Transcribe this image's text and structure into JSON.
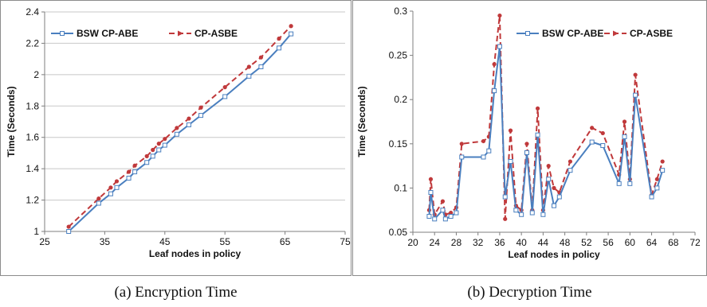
{
  "chart_data": [
    {
      "type": "line",
      "caption": "(a) Encryption Time",
      "xlabel": "Leaf nodes in policy",
      "ylabel": "Time (Seconds)",
      "xlim": [
        25,
        75
      ],
      "ylim": [
        1,
        2.4
      ],
      "x_ticks": [
        25,
        35,
        45,
        55,
        65,
        75
      ],
      "y_ticks": [
        1,
        1.2,
        1.4,
        1.6,
        1.8,
        2,
        2.2,
        2.4
      ],
      "x_tick_labels": [
        "25",
        "35",
        "45",
        "55",
        "65",
        "75"
      ],
      "y_tick_labels": [
        "1",
        "1.2",
        "1.4",
        "1.6",
        "1.8",
        "2",
        "2.2",
        "2.4"
      ],
      "grid": "horizontal",
      "legend_position": "top-left",
      "series": [
        {
          "name": "BSW CP-ABE",
          "color": "#4a7fbf",
          "marker": "square",
          "x": [
            29,
            34,
            36,
            37,
            39,
            40,
            42,
            43,
            44,
            45,
            47,
            49,
            51,
            55,
            59,
            61,
            64,
            66
          ],
          "y": [
            1.0,
            1.18,
            1.24,
            1.28,
            1.34,
            1.38,
            1.44,
            1.48,
            1.52,
            1.55,
            1.62,
            1.68,
            1.74,
            1.86,
            1.99,
            2.05,
            2.17,
            2.26
          ]
        },
        {
          "name": "CP-ASBE",
          "color": "#c0393b",
          "marker": "arrow",
          "x": [
            29,
            34,
            36,
            37,
            39,
            40,
            42,
            43,
            44,
            45,
            47,
            49,
            51,
            55,
            59,
            61,
            64,
            66
          ],
          "y": [
            1.03,
            1.21,
            1.28,
            1.32,
            1.38,
            1.42,
            1.48,
            1.52,
            1.56,
            1.59,
            1.66,
            1.72,
            1.79,
            1.92,
            2.05,
            2.11,
            2.23,
            2.31
          ]
        }
      ]
    },
    {
      "type": "line",
      "caption": "(b) Decryption Time",
      "xlabel": "Leaf nodes in policy",
      "ylabel": "Time (Seconds)",
      "xlim": [
        20,
        72
      ],
      "ylim": [
        0.05,
        0.3
      ],
      "x_ticks": [
        20,
        24,
        28,
        32,
        36,
        40,
        44,
        48,
        52,
        56,
        60,
        64,
        68,
        72
      ],
      "y_ticks": [
        0.05,
        0.1,
        0.15,
        0.2,
        0.25,
        0.3
      ],
      "x_tick_labels": [
        "20",
        "24",
        "28",
        "32",
        "36",
        "40",
        "44",
        "48",
        "52",
        "56",
        "60",
        "64",
        "68",
        "72"
      ],
      "y_tick_labels": [
        "0.05",
        "0.1",
        "0.15",
        "0.2",
        "0.25",
        "0.3"
      ],
      "grid": "none",
      "legend_position": "top-right",
      "series": [
        {
          "name": "BSW CP-ABE",
          "color": "#4a7fbf",
          "marker": "square",
          "x": [
            23,
            23.3,
            24,
            25.5,
            26,
            27,
            28,
            29,
            33,
            34,
            35,
            36,
            37,
            38,
            39,
            40,
            41,
            42,
            43,
            44,
            45,
            46,
            47,
            49,
            53,
            55,
            58,
            59,
            60,
            61,
            64,
            65,
            66
          ],
          "y": [
            0.068,
            0.095,
            0.065,
            0.075,
            0.065,
            0.068,
            0.072,
            0.135,
            0.135,
            0.142,
            0.21,
            0.26,
            0.09,
            0.13,
            0.075,
            0.07,
            0.14,
            0.072,
            0.16,
            0.07,
            0.11,
            0.08,
            0.09,
            0.12,
            0.152,
            0.148,
            0.105,
            0.158,
            0.105,
            0.205,
            0.09,
            0.1,
            0.12
          ]
        },
        {
          "name": "CP-ASBE",
          "color": "#c0393b",
          "marker": "arrow",
          "x": [
            23,
            23.3,
            24,
            25.5,
            26,
            27,
            28,
            29,
            33,
            34,
            35,
            36,
            37,
            38,
            39,
            40,
            41,
            42,
            43,
            44,
            45,
            46,
            47,
            49,
            53,
            55,
            58,
            59,
            60,
            61,
            64,
            65,
            66
          ],
          "y": [
            0.075,
            0.11,
            0.07,
            0.085,
            0.07,
            0.072,
            0.078,
            0.15,
            0.153,
            0.158,
            0.24,
            0.295,
            0.065,
            0.165,
            0.08,
            0.075,
            0.15,
            0.075,
            0.19,
            0.075,
            0.125,
            0.1,
            0.095,
            0.13,
            0.168,
            0.162,
            0.115,
            0.175,
            0.11,
            0.228,
            0.092,
            0.11,
            0.13
          ]
        }
      ]
    }
  ]
}
